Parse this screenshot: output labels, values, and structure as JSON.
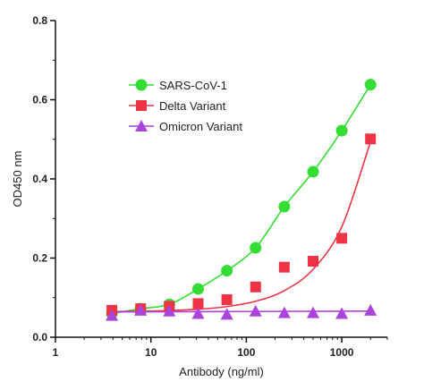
{
  "chart_data": {
    "type": "scatter",
    "xlabel": "Antibody (ng/ml)",
    "ylabel": "OD450 nm",
    "xscale": "log",
    "xlim": [
      1,
      3000
    ],
    "ylim": [
      0,
      0.8
    ],
    "x_ticks": [
      "1",
      "10",
      "100",
      "1000"
    ],
    "y_ticks": [
      "0.0",
      "0.2",
      "0.4",
      "0.6",
      "0.8"
    ],
    "legend_position": "upper-left",
    "grid": false,
    "series": [
      {
        "name": "SARS-CoV-1",
        "marker": "circle",
        "color": "#33dd33",
        "x": [
          3.9,
          7.8,
          15.6,
          31.25,
          62.5,
          125,
          250,
          500,
          1000,
          2000
        ],
        "y": [
          0.06,
          0.072,
          0.083,
          0.122,
          0.168,
          0.226,
          0.33,
          0.418,
          0.522,
          0.638
        ]
      },
      {
        "name": "Delta Variant",
        "marker": "square",
        "color": "#ee3344",
        "x": [
          3.9,
          7.8,
          15.6,
          31.25,
          62.5,
          125,
          250,
          500,
          1000,
          2000
        ],
        "y": [
          0.068,
          0.072,
          0.078,
          0.085,
          0.095,
          0.127,
          0.177,
          0.192,
          0.25,
          0.501
        ]
      },
      {
        "name": "Omicron Variant",
        "marker": "triangle",
        "color": "#aa44dd",
        "x": [
          3.9,
          7.8,
          15.6,
          31.25,
          62.5,
          125,
          250,
          500,
          1000,
          2000
        ],
        "y": [
          0.055,
          0.068,
          0.066,
          0.06,
          0.058,
          0.066,
          0.062,
          0.062,
          0.06,
          0.068
        ]
      }
    ]
  }
}
